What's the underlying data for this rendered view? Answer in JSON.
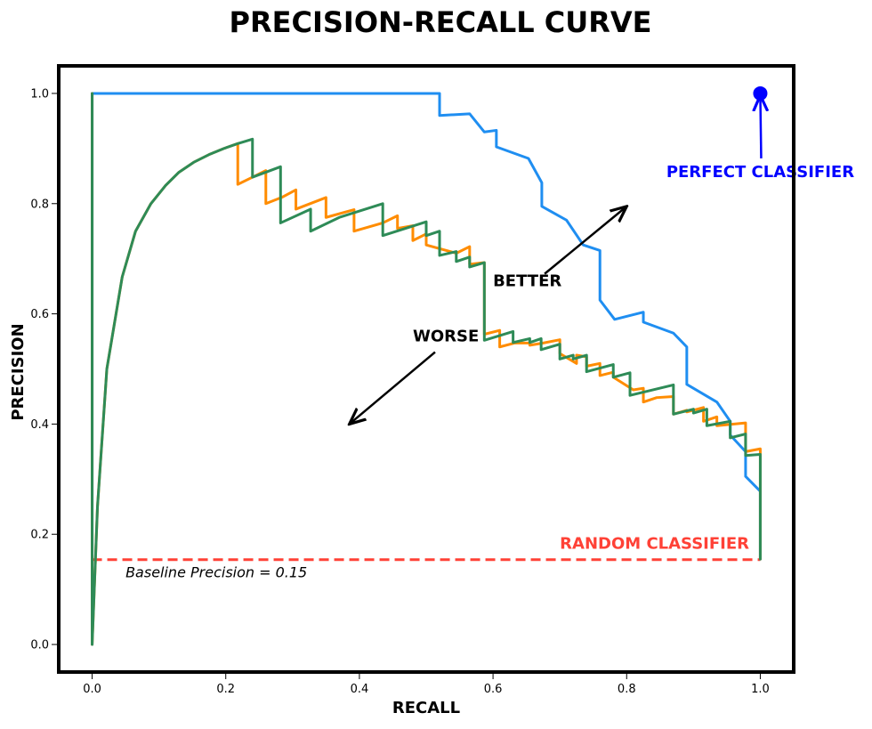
{
  "chart_data": {
    "type": "line",
    "title": "PRECISION-RECALL CURVE",
    "xlabel": "RECALL",
    "ylabel": "PRECISION",
    "xlim": [
      -0.05,
      1.05
    ],
    "ylim": [
      -0.05,
      1.05
    ],
    "xticks": [
      "0.0",
      "0.2",
      "0.4",
      "0.6",
      "0.8",
      "1.0"
    ],
    "yticks": [
      "0.0",
      "0.2",
      "0.4",
      "0.6",
      "0.8",
      "1.0"
    ],
    "grid": false,
    "colors": {
      "blue_curve": "#1f8ef1",
      "orange_curve": "#ff8c00",
      "green_curve": "#2e8b57",
      "baseline": "#ff4136",
      "perfect": "#0000ff"
    },
    "series": [
      {
        "key": "blue_curve",
        "points": [
          [
            0,
            0
          ],
          [
            0,
            1.0
          ],
          [
            0.52,
            1.0
          ],
          [
            0.52,
            0.96
          ],
          [
            0.565,
            0.963
          ],
          [
            0.587,
            0.93
          ],
          [
            0.605,
            0.933
          ],
          [
            0.605,
            0.903
          ],
          [
            0.653,
            0.882
          ],
          [
            0.673,
            0.838
          ],
          [
            0.673,
            0.795
          ],
          [
            0.71,
            0.77
          ],
          [
            0.735,
            0.725
          ],
          [
            0.76,
            0.715
          ],
          [
            0.76,
            0.625
          ],
          [
            0.782,
            0.59
          ],
          [
            0.825,
            0.603
          ],
          [
            0.825,
            0.585
          ],
          [
            0.87,
            0.565
          ],
          [
            0.89,
            0.54
          ],
          [
            0.89,
            0.472
          ],
          [
            0.935,
            0.44
          ],
          [
            0.955,
            0.405
          ],
          [
            0.955,
            0.38
          ],
          [
            0.978,
            0.35
          ],
          [
            0.978,
            0.305
          ],
          [
            1.0,
            0.278
          ],
          [
            1.0,
            0.155
          ]
        ]
      },
      {
        "key": "orange_curve",
        "points": [
          [
            0,
            0
          ],
          [
            0,
            1.0
          ],
          [
            0,
            0
          ],
          [
            0.008,
            0.25
          ],
          [
            0.022,
            0.5
          ],
          [
            0.045,
            0.667
          ],
          [
            0.065,
            0.75
          ],
          [
            0.088,
            0.8
          ],
          [
            0.11,
            0.833
          ],
          [
            0.13,
            0.857
          ],
          [
            0.152,
            0.875
          ],
          [
            0.175,
            0.889
          ],
          [
            0.197,
            0.9
          ],
          [
            0.218,
            0.909
          ],
          [
            0.218,
            0.835
          ],
          [
            0.24,
            0.848
          ],
          [
            0.26,
            0.86
          ],
          [
            0.26,
            0.8
          ],
          [
            0.285,
            0.812
          ],
          [
            0.305,
            0.825
          ],
          [
            0.305,
            0.79
          ],
          [
            0.35,
            0.811
          ],
          [
            0.35,
            0.775
          ],
          [
            0.392,
            0.789
          ],
          [
            0.392,
            0.75
          ],
          [
            0.435,
            0.765
          ],
          [
            0.457,
            0.778
          ],
          [
            0.457,
            0.755
          ],
          [
            0.48,
            0.76
          ],
          [
            0.48,
            0.733
          ],
          [
            0.5,
            0.745
          ],
          [
            0.5,
            0.725
          ],
          [
            0.545,
            0.71
          ],
          [
            0.565,
            0.722
          ],
          [
            0.565,
            0.69
          ],
          [
            0.587,
            0.693
          ],
          [
            0.587,
            0.563
          ],
          [
            0.61,
            0.57
          ],
          [
            0.61,
            0.54
          ],
          [
            0.632,
            0.547
          ],
          [
            0.655,
            0.547
          ],
          [
            0.655,
            0.543
          ],
          [
            0.675,
            0.547
          ],
          [
            0.7,
            0.553
          ],
          [
            0.7,
            0.528
          ],
          [
            0.725,
            0.51
          ],
          [
            0.725,
            0.525
          ],
          [
            0.74,
            0.522
          ],
          [
            0.74,
            0.505
          ],
          [
            0.76,
            0.51
          ],
          [
            0.76,
            0.488
          ],
          [
            0.78,
            0.494
          ],
          [
            0.78,
            0.485
          ],
          [
            0.81,
            0.462
          ],
          [
            0.825,
            0.465
          ],
          [
            0.825,
            0.44
          ],
          [
            0.845,
            0.448
          ],
          [
            0.87,
            0.45
          ],
          [
            0.87,
            0.418
          ],
          [
            0.89,
            0.425
          ],
          [
            0.89,
            0.422
          ],
          [
            0.915,
            0.43
          ],
          [
            0.915,
            0.405
          ],
          [
            0.935,
            0.413
          ],
          [
            0.935,
            0.397
          ],
          [
            0.978,
            0.402
          ],
          [
            0.978,
            0.35
          ],
          [
            1.0,
            0.355
          ],
          [
            1.0,
            0.155
          ]
        ]
      },
      {
        "key": "green_curve",
        "points": [
          [
            0,
            0
          ],
          [
            0,
            1.0
          ],
          [
            0,
            0
          ],
          [
            0.008,
            0.25
          ],
          [
            0.022,
            0.5
          ],
          [
            0.045,
            0.667
          ],
          [
            0.065,
            0.75
          ],
          [
            0.088,
            0.8
          ],
          [
            0.11,
            0.833
          ],
          [
            0.13,
            0.857
          ],
          [
            0.152,
            0.875
          ],
          [
            0.175,
            0.889
          ],
          [
            0.197,
            0.9
          ],
          [
            0.218,
            0.909
          ],
          [
            0.24,
            0.917
          ],
          [
            0.24,
            0.848
          ],
          [
            0.282,
            0.867
          ],
          [
            0.282,
            0.765
          ],
          [
            0.327,
            0.79
          ],
          [
            0.327,
            0.75
          ],
          [
            0.37,
            0.775
          ],
          [
            0.435,
            0.8
          ],
          [
            0.435,
            0.742
          ],
          [
            0.5,
            0.767
          ],
          [
            0.5,
            0.742
          ],
          [
            0.52,
            0.75
          ],
          [
            0.52,
            0.706
          ],
          [
            0.545,
            0.713
          ],
          [
            0.545,
            0.695
          ],
          [
            0.565,
            0.703
          ],
          [
            0.565,
            0.685
          ],
          [
            0.587,
            0.693
          ],
          [
            0.587,
            0.552
          ],
          [
            0.63,
            0.568
          ],
          [
            0.63,
            0.548
          ],
          [
            0.655,
            0.555
          ],
          [
            0.655,
            0.548
          ],
          [
            0.672,
            0.555
          ],
          [
            0.672,
            0.535
          ],
          [
            0.7,
            0.545
          ],
          [
            0.7,
            0.518
          ],
          [
            0.72,
            0.525
          ],
          [
            0.72,
            0.518
          ],
          [
            0.74,
            0.525
          ],
          [
            0.74,
            0.495
          ],
          [
            0.78,
            0.508
          ],
          [
            0.78,
            0.485
          ],
          [
            0.805,
            0.493
          ],
          [
            0.805,
            0.452
          ],
          [
            0.87,
            0.471
          ],
          [
            0.87,
            0.418
          ],
          [
            0.9,
            0.427
          ],
          [
            0.9,
            0.42
          ],
          [
            0.92,
            0.427
          ],
          [
            0.92,
            0.397
          ],
          [
            0.955,
            0.405
          ],
          [
            0.955,
            0.375
          ],
          [
            0.978,
            0.382
          ],
          [
            0.978,
            0.343
          ],
          [
            1.0,
            0.345
          ],
          [
            1.0,
            0.155
          ]
        ]
      }
    ],
    "baseline": {
      "y": 0.154,
      "x_range": [
        0.0,
        1.0
      ],
      "label": "RANDOM CLASSIFIER",
      "caption": "Baseline Precision = 0.15"
    },
    "perfect_point": {
      "x": 1.0,
      "y": 1.0,
      "label": "PERFECT CLASSIFIER"
    },
    "annotations": [
      {
        "key": "better",
        "text": "BETTER",
        "text_x": 0.6,
        "text_y": 0.65,
        "arrow_to": [
          0.8,
          0.795
        ]
      },
      {
        "key": "worse",
        "text": "WORSE",
        "text_x": 0.48,
        "text_y": 0.55,
        "arrow_to": [
          0.385,
          0.4
        ]
      }
    ]
  }
}
